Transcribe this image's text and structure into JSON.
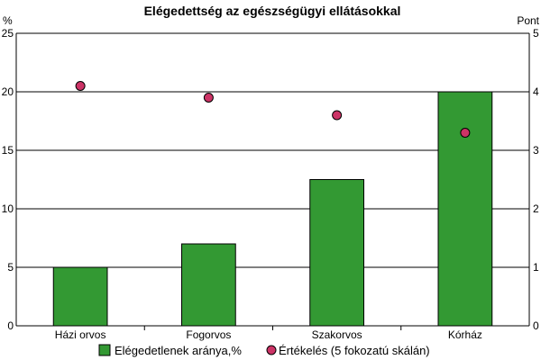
{
  "chart_data": {
    "type": "bar",
    "title": "Elégedettség az egészségügyi ellátásokkal",
    "categories": [
      "Házi orvos",
      "Fogorvos",
      "Szakorvos",
      "Kórház"
    ],
    "series": [
      {
        "name": "Elégedetlenek aránya,%",
        "type": "bar",
        "axis": "left",
        "color": "#339933",
        "values": [
          5,
          7,
          12.5,
          20
        ]
      },
      {
        "name": "Értékelés (5 fokozatú skálán)",
        "type": "scatter",
        "axis": "right",
        "color": "#cc3366",
        "values": [
          4.1,
          3.9,
          3.6,
          3.3
        ]
      }
    ],
    "y_left": {
      "unit": "%",
      "ylim": [
        0,
        25
      ],
      "ticks": [
        0,
        5,
        10,
        15,
        20,
        25
      ]
    },
    "y_right": {
      "unit": "Pont",
      "ylim": [
        0,
        5
      ],
      "ticks": [
        0,
        1,
        2,
        3,
        4,
        5
      ]
    },
    "grid": true,
    "legend_position": "bottom"
  }
}
